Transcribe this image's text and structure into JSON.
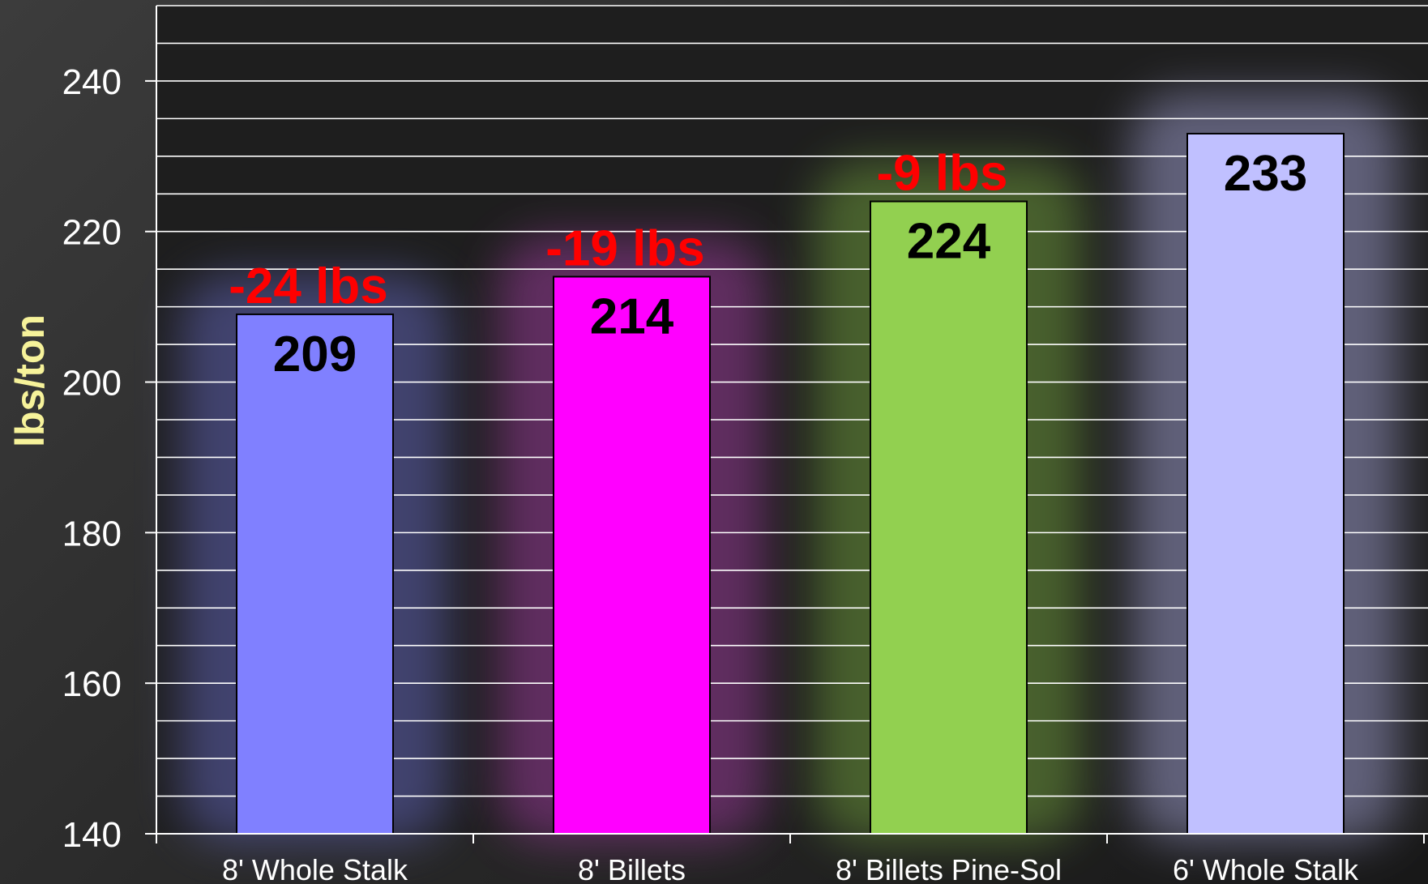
{
  "chart_data": {
    "type": "bar",
    "title": "",
    "xlabel": "",
    "ylabel": "lbs/ton",
    "categories": [
      "8' Whole Stalk",
      "8' Billets",
      "8' Billets Pine-Sol",
      "6' Whole Stalk"
    ],
    "values": [
      209,
      214,
      224,
      233
    ],
    "data_labels": [
      "209",
      "214",
      "224",
      "233"
    ],
    "annotations": [
      "-24 lbs",
      "-19 lbs",
      "-9 lbs",
      ""
    ],
    "bar_colors": [
      "#8080ff",
      "#ff00ff",
      "#92d050",
      "#c0c0ff"
    ],
    "glow_colors": [
      "#6c70d0",
      "#b040b0",
      "#7cb040",
      "#b0b0e8"
    ],
    "ylim": [
      140,
      250
    ],
    "yticks": [
      140,
      160,
      180,
      200,
      220,
      240
    ],
    "minor_gridline_step": 5,
    "grid": true,
    "legend": "none",
    "annotation_color": "#ff0000",
    "ylabel_color": "#f6f29a"
  }
}
